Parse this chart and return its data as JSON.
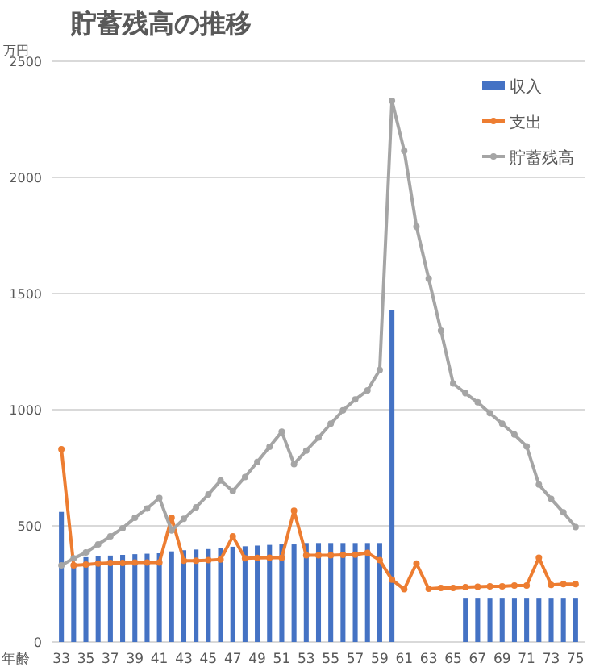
{
  "chart_data": {
    "type": "bar",
    "title": "貯蓄残高の推移",
    "ylabel": "万円",
    "xlabel": "年齢",
    "categories": [
      "33",
      null,
      "35",
      null,
      "37",
      null,
      "39",
      null,
      "41",
      null,
      "43",
      null,
      "45",
      null,
      "47",
      null,
      "49",
      null,
      "51",
      null,
      "53",
      null,
      "55",
      null,
      "57",
      null,
      "59",
      null,
      "61",
      null,
      "63",
      null,
      "65",
      null,
      "67",
      null,
      "69",
      null,
      "71",
      null,
      "73",
      null,
      "75"
    ],
    "series": [
      {
        "name": "収入",
        "color": "#4472c4",
        "values": [
          560,
          340,
          365,
          370,
          372,
          375,
          378,
          380,
          382,
          390,
          395,
          398,
          400,
          405,
          410,
          412,
          415,
          418,
          420,
          420,
          426,
          426,
          426,
          426,
          426,
          426,
          426,
          1430,
          null,
          null,
          null,
          null,
          null,
          187,
          187,
          187,
          187,
          187,
          187,
          187,
          187,
          187,
          187
        ]
      },
      {
        "name": "支出",
        "type": "line",
        "color": "#ed7d31",
        "values": [
          830,
          330,
          333,
          338,
          340,
          340,
          342,
          342,
          342,
          535,
          350,
          350,
          352,
          355,
          455,
          360,
          362,
          363,
          363,
          565,
          373,
          373,
          373,
          375,
          376,
          384,
          352,
          268,
          227,
          338,
          229,
          233,
          233,
          236,
          238,
          240,
          240,
          243,
          243,
          363,
          246,
          249,
          249
        ]
      },
      {
        "name": "貯蓄残高",
        "type": "line",
        "color": "#a5a5a5",
        "values": [
          330,
          360,
          385,
          420,
          455,
          490,
          535,
          575,
          620,
          480,
          530,
          580,
          635,
          695,
          650,
          710,
          775,
          840,
          905,
          766,
          824,
          880,
          940,
          997,
          1044,
          1083,
          1171,
          2330,
          2115,
          1788,
          1564,
          1340,
          1113,
          1071,
          1032,
          985,
          940,
          893,
          842,
          678,
          616,
          558,
          495
        ]
      }
    ],
    "ylim": [
      0,
      2500
    ],
    "yticks": [
      0,
      500,
      1000,
      1500,
      2000,
      2500
    ],
    "grid": "y",
    "legend": "top right",
    "marker": "circle",
    "line_style": "solid"
  }
}
